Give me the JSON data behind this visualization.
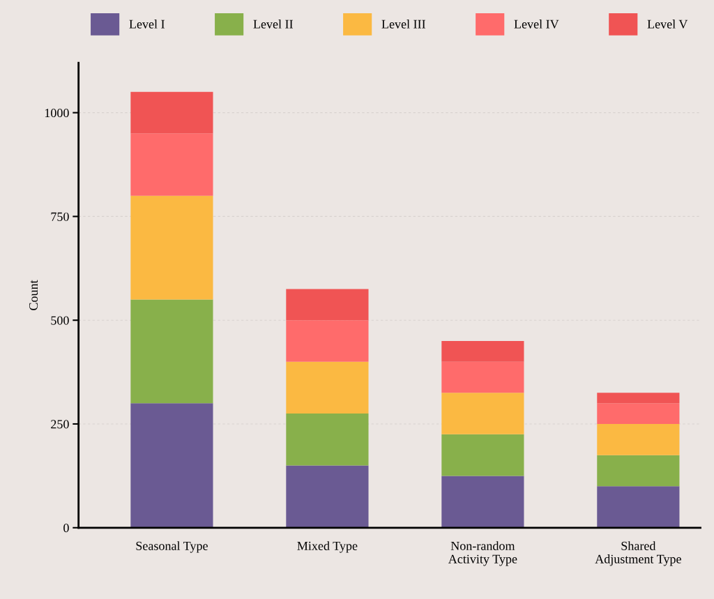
{
  "chart_data": {
    "type": "bar",
    "stacked": true,
    "ylabel": "Count",
    "categories": [
      "Seasonal Type",
      "Mixed Type",
      "Non-random\nActivity Type",
      "Shared\nAdjustment Type"
    ],
    "series": [
      {
        "name": "Level I",
        "color": "#6a5a93",
        "values": [
          300,
          150,
          125,
          100
        ]
      },
      {
        "name": "Level II",
        "color": "#88b04b",
        "values": [
          250,
          125,
          100,
          75
        ]
      },
      {
        "name": "Level III",
        "color": "#fbb942",
        "values": [
          250,
          125,
          100,
          75
        ]
      },
      {
        "name": "Level IV",
        "color": "#ff6b6b",
        "values": [
          150,
          100,
          75,
          50
        ]
      },
      {
        "name": "Level V",
        "color": "#f05454",
        "values": [
          100,
          75,
          50,
          25
        ]
      }
    ],
    "ylim": [
      0,
      1120
    ],
    "yticks": [
      0,
      250,
      500,
      750,
      1000
    ],
    "grid": "y",
    "legend": "top"
  }
}
